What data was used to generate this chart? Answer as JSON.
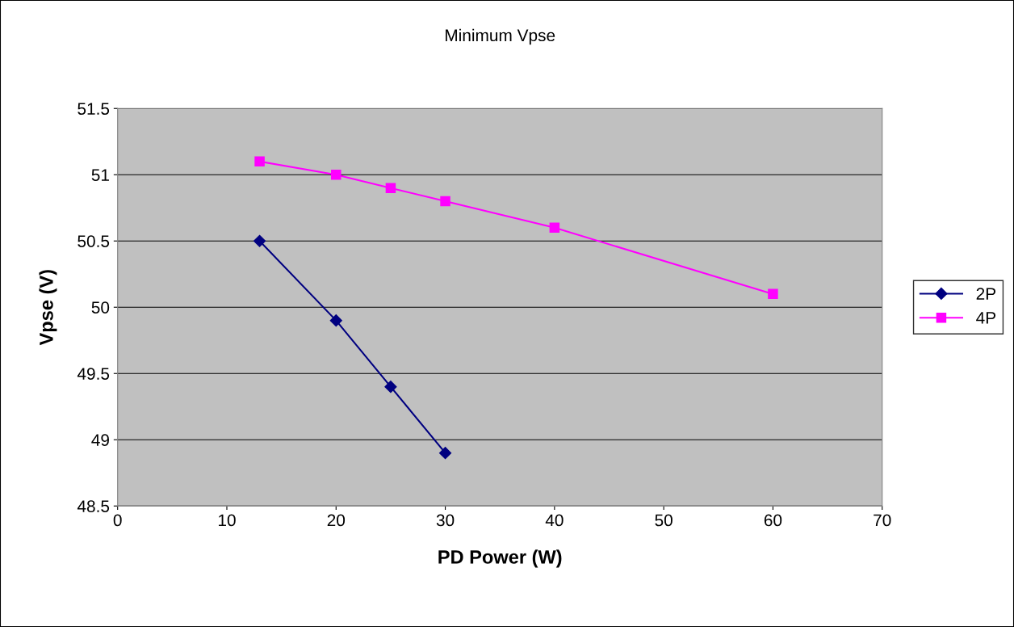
{
  "chart_data": {
    "type": "line",
    "title": "Minimum Vpse",
    "xlabel": "PD Power (W)",
    "ylabel": "Vpse (V)",
    "series": [
      {
        "name": "2P",
        "color": "#000080",
        "marker": "diamond",
        "x": [
          13,
          20,
          25,
          30
        ],
        "values": [
          50.5,
          49.9,
          49.4,
          48.9
        ]
      },
      {
        "name": "4P",
        "color": "#ff00ff",
        "marker": "square",
        "x": [
          13,
          20,
          25,
          30,
          40,
          60
        ],
        "values": [
          51.1,
          51.0,
          50.9,
          50.8,
          50.6,
          50.1
        ]
      }
    ],
    "xlim": [
      0,
      70
    ],
    "xticks": [
      0,
      10,
      20,
      30,
      40,
      50,
      60,
      70
    ],
    "ylim": [
      48.5,
      51.5
    ],
    "yticks": [
      48.5,
      49,
      49.5,
      50,
      50.5,
      51,
      51.5
    ],
    "grid": "y",
    "legend": "right"
  }
}
